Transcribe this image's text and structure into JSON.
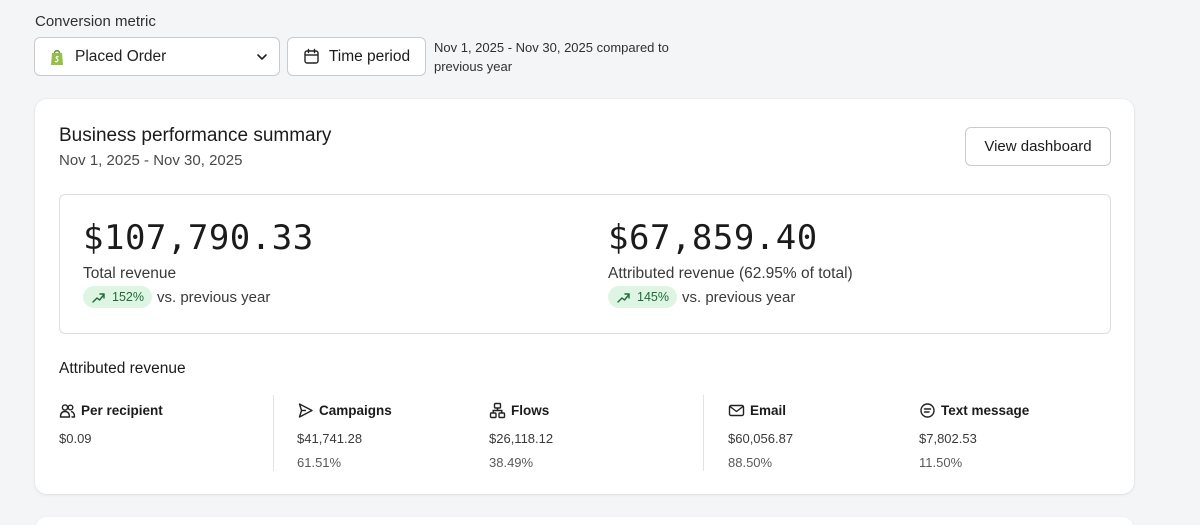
{
  "filters": {
    "label": "Conversion metric",
    "metric_value": "Placed Order",
    "time_button": "Time period",
    "comparison": "Nov 1, 2025 - Nov 30, 2025 compared to previous year"
  },
  "summary": {
    "title": "Business performance summary",
    "date_range": "Nov 1, 2025 - Nov 30, 2025",
    "view_button": "View dashboard",
    "total": {
      "amount": "$107,790.33",
      "label": "Total revenue",
      "change": "152%",
      "change_suffix": "vs. previous year"
    },
    "attributed": {
      "amount": "$67,859.40",
      "label": "Attributed revenue (62.95% of total)",
      "change": "145%",
      "change_suffix": "vs. previous year"
    }
  },
  "attributed_breakdown": {
    "title": "Attributed revenue",
    "items": [
      {
        "label": "Per recipient",
        "icon": "people-icon",
        "value": "$0.09",
        "percent": ""
      },
      {
        "label": "Campaigns",
        "icon": "send-icon",
        "value": "$41,741.28",
        "percent": "61.51%"
      },
      {
        "label": "Flows",
        "icon": "flow-icon",
        "value": "$26,118.12",
        "percent": "38.49%"
      },
      {
        "label": "Email",
        "icon": "mail-icon",
        "value": "$60,056.87",
        "percent": "88.50%"
      },
      {
        "label": "Text message",
        "icon": "message-icon",
        "value": "$7,802.53",
        "percent": "11.50%"
      }
    ]
  },
  "colors": {
    "positive_bg": "#dff5e3",
    "positive_text": "#1d6b35",
    "shopify_green": "#95bf47"
  }
}
